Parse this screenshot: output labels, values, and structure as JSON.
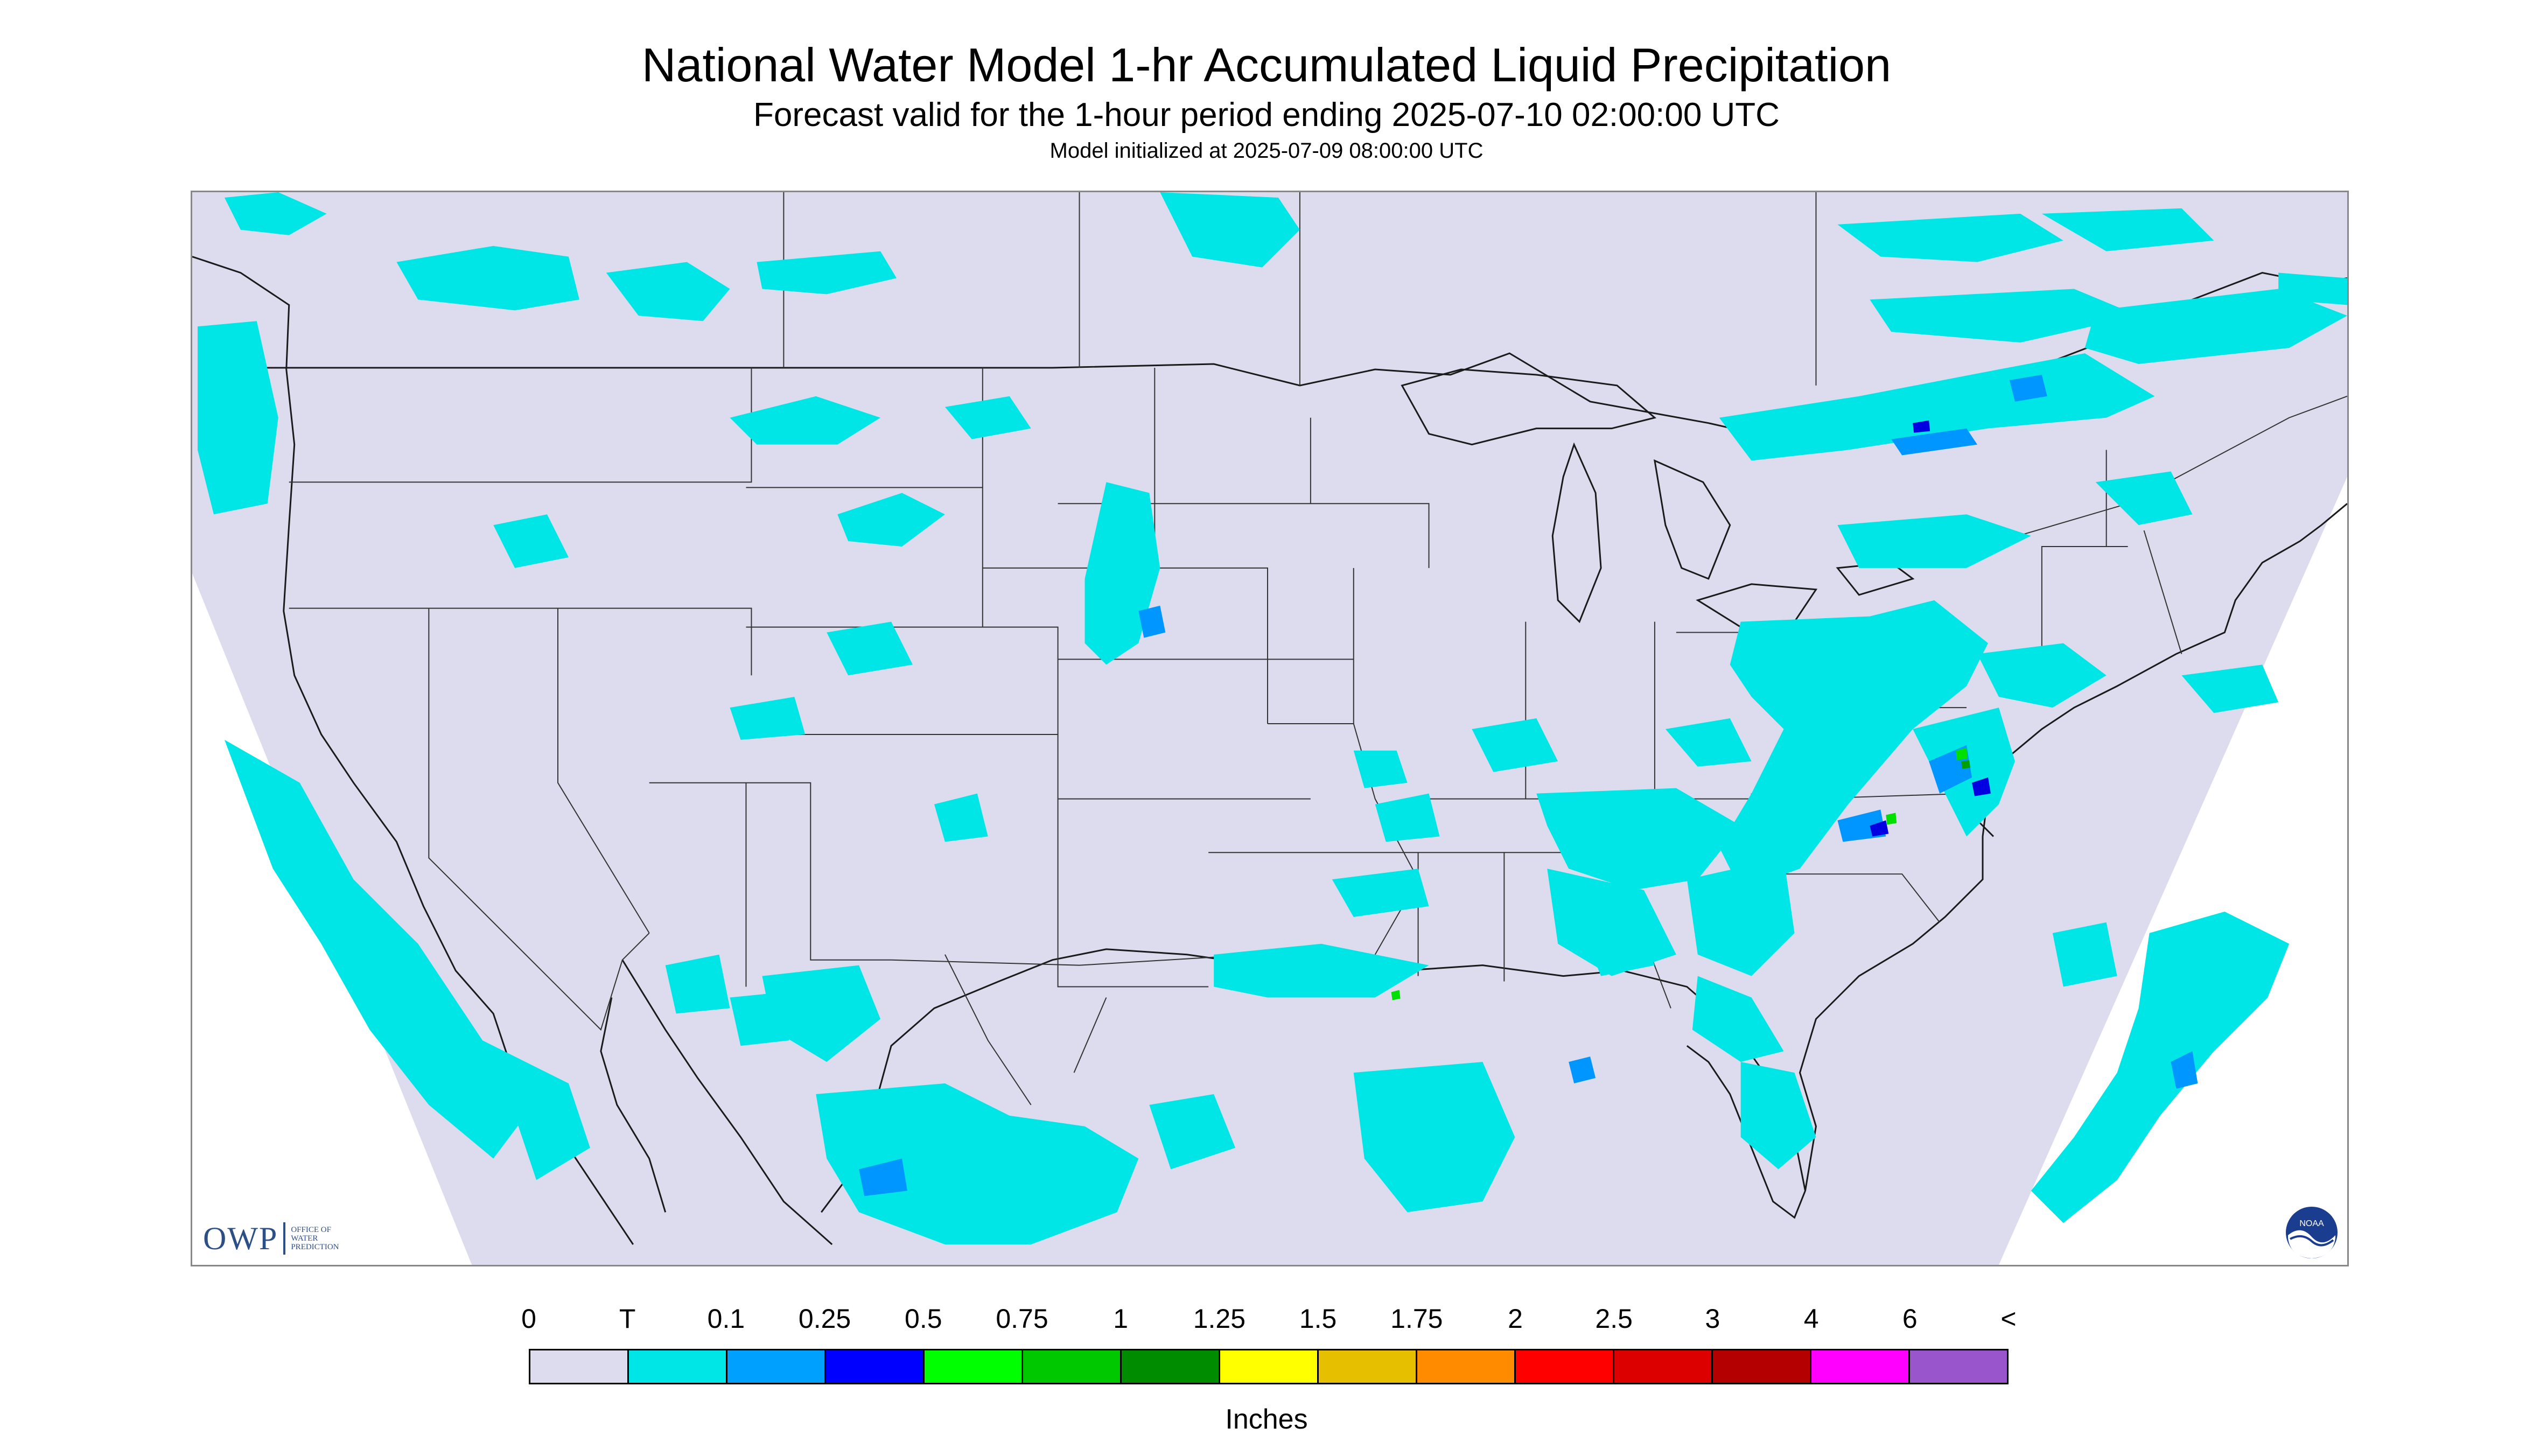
{
  "header": {
    "title": "National Water Model 1-hr Accumulated Liquid Precipitation",
    "subtitle": "Forecast valid for the 1-hour period ending 2025-07-10 02:00:00 UTC",
    "init_line": "Model initialized at 2025-07-09 08:00:00 UTC"
  },
  "map": {
    "domain_fill_color": "#dcdcee",
    "outside_domain_color": "#ffffff",
    "boundary_color": "#1a1a1a",
    "precip_colors": {
      "trace": "#00e5e5",
      "light": "#0096ff",
      "moderate": "#0000e0",
      "heavy": "#00e000",
      "very_heavy": "#00a000"
    }
  },
  "logos": {
    "owp_mark": "OWP",
    "owp_text": [
      "OFFICE OF",
      "WATER",
      "PREDICTION"
    ],
    "noaa_text": "NOAA"
  },
  "legend": {
    "labels": [
      "0",
      "T",
      "0.1",
      "0.25",
      "0.5",
      "0.75",
      "1",
      "1.25",
      "1.5",
      "1.75",
      "2",
      "2.5",
      "3",
      "4",
      "6",
      "<"
    ],
    "colors": [
      "#dcdcee",
      "#00e5e5",
      "#00a0ff",
      "#0000ff",
      "#00ff00",
      "#00c800",
      "#008c00",
      "#ffff00",
      "#e6c000",
      "#ff8c00",
      "#ff0000",
      "#dc0000",
      "#b40000",
      "#ff00ff",
      "#9955cc"
    ],
    "units": "Inches"
  }
}
